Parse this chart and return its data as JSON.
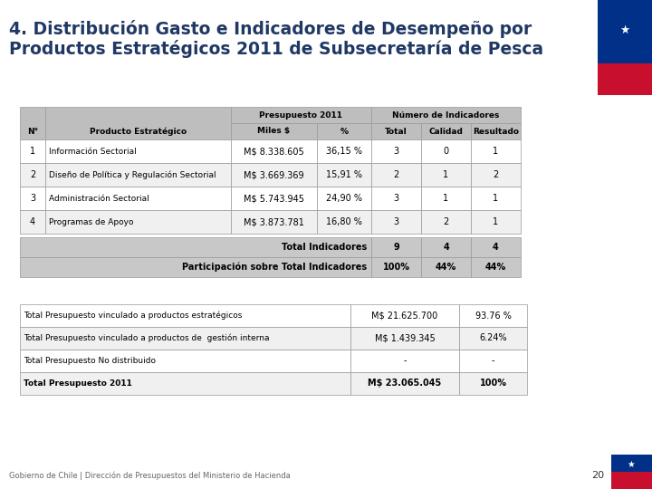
{
  "title_line1": "4. Distribución Gasto e Indicadores de Desempeño por",
  "title_line2": "Productos Estratégicos 2011 de Subsecretaría de Pesca",
  "title_color": "#1F3864",
  "table1_rows": [
    [
      "1",
      "Información Sectorial",
      "M$ 8.338.605",
      "36,15 %",
      "3",
      "0",
      "1"
    ],
    [
      "2",
      "Diseño de Política y Regulación Sectorial",
      "M$ 3.669.369",
      "15,91 %",
      "2",
      "1",
      "2"
    ],
    [
      "3",
      "Administración Sectorial",
      "M$ 5.743.945",
      "24,90 %",
      "3",
      "1",
      "1"
    ],
    [
      "4",
      "Programas de Apoyo",
      "M$ 3.873.781",
      "16,80 %",
      "3",
      "2",
      "1"
    ]
  ],
  "table2_rows": [
    [
      "Total Presupuesto vinculado a productos estratégicos",
      "M$ 21.625.700",
      "93.76 %"
    ],
    [
      "Total Presupuesto vinculado a productos de  gestión interna",
      "M$ 1.439.345",
      "6.24%"
    ],
    [
      "Total Presupuesto No distribuido",
      "-",
      "-"
    ],
    [
      "Total Presupuesto 2011",
      "M$ 23.065.045",
      "100%"
    ]
  ],
  "footer_text": "Gobierno de Chile | Dirección de Presupuestos del Ministerio de Hacienda",
  "page_number": "20",
  "flag_red": "#C8102E",
  "flag_blue": "#003087",
  "header_bg": "#BEBEBE",
  "footer_bg": "#C8C8C8",
  "white": "#FFFFFF",
  "light_gray": "#F0F0F0"
}
